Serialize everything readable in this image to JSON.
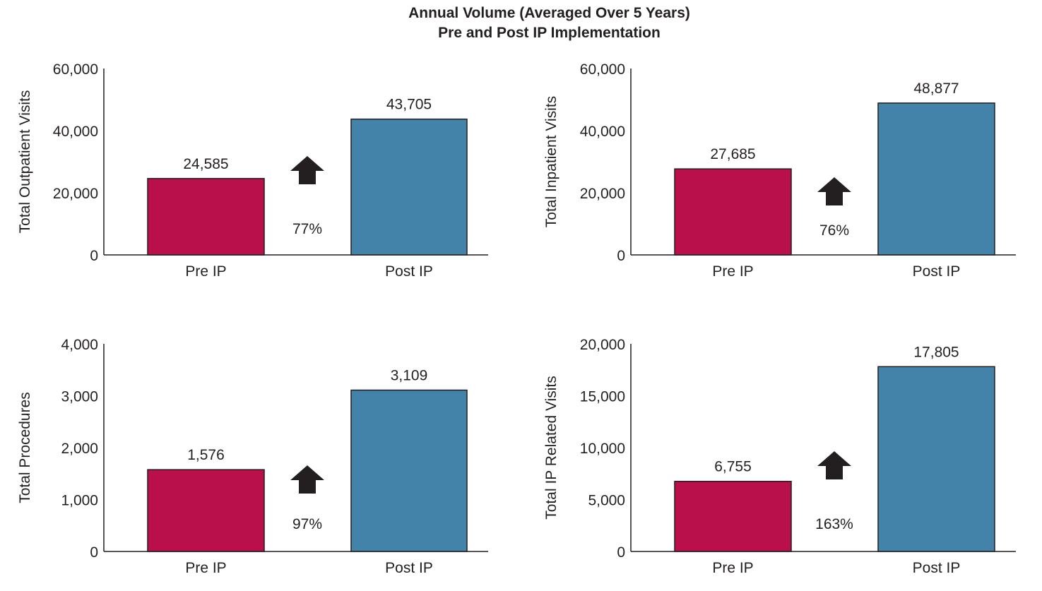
{
  "title": "Annual Volume (Averaged Over 5 Years)",
  "subtitle": "Pre and Post IP Implementation",
  "colors": {
    "pre": "#b90f4b",
    "post": "#4382a9",
    "arrow": "#231f20",
    "axis": "#231f20",
    "text": "#231f20"
  },
  "chart_data": [
    {
      "type": "bar",
      "categories": [
        "Pre IP",
        "Post IP"
      ],
      "values": [
        24585,
        43705
      ],
      "value_labels": [
        "24,585",
        "43,705"
      ],
      "ylabel": "Total Outpatient Visits",
      "ylim": [
        0,
        60000
      ],
      "yticks": [
        0,
        20000,
        40000,
        60000
      ],
      "ytick_labels": [
        "0",
        "20,000",
        "40,000",
        "60,000"
      ],
      "change_label": "77%",
      "change_direction": "up",
      "grid": false
    },
    {
      "type": "bar",
      "categories": [
        "Pre IP",
        "Post IP"
      ],
      "values": [
        27685,
        48877
      ],
      "value_labels": [
        "27,685",
        "48,877"
      ],
      "ylabel": "Total Inpatient Visits",
      "ylim": [
        0,
        60000
      ],
      "yticks": [
        0,
        20000,
        40000,
        60000
      ],
      "ytick_labels": [
        "0",
        "20,000",
        "40,000",
        "60,000"
      ],
      "change_label": "76%",
      "change_direction": "up",
      "grid": false
    },
    {
      "type": "bar",
      "categories": [
        "Pre IP",
        "Post IP"
      ],
      "values": [
        1576,
        3109
      ],
      "value_labels": [
        "1,576",
        "3,109"
      ],
      "ylabel": "Total Procedures",
      "ylim": [
        0,
        4000
      ],
      "yticks": [
        0,
        1000,
        2000,
        3000,
        4000
      ],
      "ytick_labels": [
        "0",
        "1,000",
        "2,000",
        "3,000",
        "4,000"
      ],
      "change_label": "97%",
      "change_direction": "up",
      "grid": false
    },
    {
      "type": "bar",
      "categories": [
        "Pre IP",
        "Post IP"
      ],
      "values": [
        6755,
        17805
      ],
      "value_labels": [
        "6,755",
        "17,805"
      ],
      "ylabel": "Total IP Related Visits",
      "ylim": [
        0,
        20000
      ],
      "yticks": [
        0,
        5000,
        10000,
        15000,
        20000
      ],
      "ytick_labels": [
        "0",
        "5,000",
        "10,000",
        "15,000",
        "20,000"
      ],
      "change_label": "163%",
      "change_direction": "up",
      "grid": false
    }
  ]
}
